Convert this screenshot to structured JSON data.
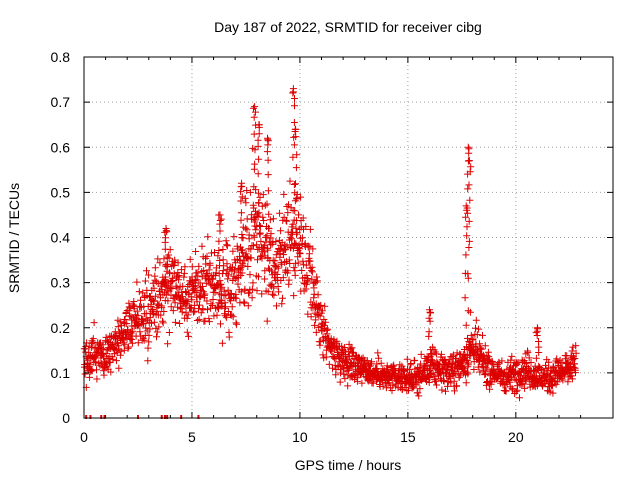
{
  "chart_data": {
    "type": "scatter",
    "title": "Day 187 of 2022, SRMTID for receiver cibg",
    "xlabel": "GPS time / hours",
    "ylabel": "SRMTID / TECUs",
    "xlim": [
      0,
      24.5
    ],
    "ylim": [
      0,
      0.8
    ],
    "grid": true,
    "marker": "+",
    "color": "#dd0000",
    "x_ticks": [
      0,
      5,
      10,
      15,
      20
    ],
    "x_tick_labels": [
      "0",
      "5",
      "10",
      "15",
      "20"
    ],
    "y_ticks": [
      0,
      0.1,
      0.2,
      0.3,
      0.4,
      0.5,
      0.6,
      0.7,
      0.8
    ],
    "y_tick_labels": [
      "0",
      "0.1",
      "0.2",
      "0.3",
      "0.4",
      "0.5",
      "0.6",
      "0.7",
      "0.8"
    ],
    "envelope": {
      "description": "approximate center trend and scatter spread of the point cloud, sampled in hours",
      "x": [
        0,
        0.5,
        1,
        1.5,
        2,
        2.5,
        3,
        3.5,
        4,
        4.5,
        5,
        5.5,
        6,
        6.5,
        7,
        7.5,
        8,
        8.5,
        9,
        9.5,
        10,
        10.5,
        11,
        11.5,
        12,
        12.5,
        13,
        13.5,
        14,
        14.5,
        15,
        15.5,
        16,
        16.5,
        17,
        17.5,
        18,
        18.5,
        19,
        19.5,
        20,
        20.5,
        21,
        21.5,
        22,
        22.5,
        22.8
      ],
      "center": [
        0.13,
        0.15,
        0.14,
        0.17,
        0.2,
        0.22,
        0.24,
        0.27,
        0.3,
        0.27,
        0.29,
        0.3,
        0.31,
        0.27,
        0.3,
        0.36,
        0.42,
        0.38,
        0.34,
        0.4,
        0.38,
        0.3,
        0.2,
        0.15,
        0.13,
        0.12,
        0.11,
        0.1,
        0.09,
        0.085,
        0.09,
        0.09,
        0.11,
        0.11,
        0.1,
        0.12,
        0.16,
        0.12,
        0.1,
        0.09,
        0.1,
        0.11,
        0.09,
        0.09,
        0.1,
        0.11,
        0.13
      ],
      "spread": [
        0.04,
        0.05,
        0.05,
        0.05,
        0.05,
        0.06,
        0.07,
        0.08,
        0.08,
        0.07,
        0.08,
        0.08,
        0.09,
        0.08,
        0.09,
        0.1,
        0.13,
        0.1,
        0.1,
        0.12,
        0.1,
        0.08,
        0.05,
        0.04,
        0.035,
        0.035,
        0.03,
        0.03,
        0.025,
        0.025,
        0.03,
        0.03,
        0.035,
        0.035,
        0.03,
        0.04,
        0.05,
        0.04,
        0.03,
        0.03,
        0.035,
        0.035,
        0.03,
        0.03,
        0.03,
        0.035,
        0.035
      ]
    },
    "peaks": [
      {
        "x": 7.9,
        "y": 0.69
      },
      {
        "x": 8.1,
        "y": 0.65
      },
      {
        "x": 8.5,
        "y": 0.62
      },
      {
        "x": 9.7,
        "y": 0.73
      },
      {
        "x": 9.8,
        "y": 0.64
      },
      {
        "x": 17.8,
        "y": 0.6
      },
      {
        "x": 17.85,
        "y": 0.57
      },
      {
        "x": 17.7,
        "y": 0.47
      },
      {
        "x": 3.8,
        "y": 0.42
      },
      {
        "x": 6.3,
        "y": 0.45
      },
      {
        "x": 7.3,
        "y": 0.52
      },
      {
        "x": 16.0,
        "y": 0.24
      },
      {
        "x": 21.0,
        "y": 0.2
      }
    ],
    "gap_markers_x": [
      0.1,
      0.3,
      0.8,
      0.95,
      2.5,
      3.6,
      3.75,
      3.85,
      4.5,
      5.3
    ]
  }
}
